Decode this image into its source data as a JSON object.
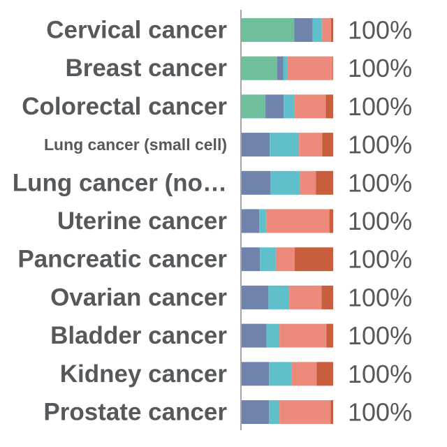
{
  "chart_data": {
    "type": "bar",
    "orientation": "horizontal",
    "stacked": true,
    "normalized": true,
    "title": "",
    "xlabel": "",
    "ylabel": "",
    "xlim": [
      0,
      100
    ],
    "grid": false,
    "legend": "none",
    "categories": [
      "Cervical cancer",
      "Breast cancer",
      "Colorectal cancer",
      "Lung cancer (small cell)",
      "Lung cancer (no…",
      "Uterine cancer",
      "Pancreatic cancer",
      "Ovarian cancer",
      "Bladder cancer",
      "Kidney cancer",
      "Prostate cancer"
    ],
    "totals": [
      "100%",
      "100%",
      "100%",
      "100%",
      "100%",
      "100%",
      "100%",
      "100%",
      "100%",
      "100%",
      "100%"
    ],
    "series": [
      {
        "color": "#70bf9c",
        "values": [
          57.6,
          38.7,
          26.0,
          0,
          0,
          0,
          0,
          0,
          0,
          0,
          0
        ]
      },
      {
        "color": "#6f83ad",
        "values": [
          20.0,
          6.7,
          20.0,
          30.7,
          31.3,
          19.3,
          20.0,
          29.3,
          27.3,
          30.0,
          30.0
        ]
      },
      {
        "color": "#5fbfcb",
        "values": [
          10.0,
          4.7,
          11.3,
          32.0,
          32.0,
          7.3,
          17.3,
          22.7,
          14.0,
          24.7,
          11.3
        ]
      },
      {
        "color": "#ec8a7c",
        "values": [
          10.0,
          49.3,
          34.7,
          25.3,
          18.0,
          69.3,
          20.7,
          35.3,
          51.3,
          27.3,
          56.0
        ]
      },
      {
        "color": "#c85e3e",
        "values": [
          2.4,
          0.6,
          8.0,
          12.0,
          18.7,
          4.1,
          42.0,
          12.7,
          7.4,
          18.0,
          2.7
        ]
      }
    ]
  }
}
